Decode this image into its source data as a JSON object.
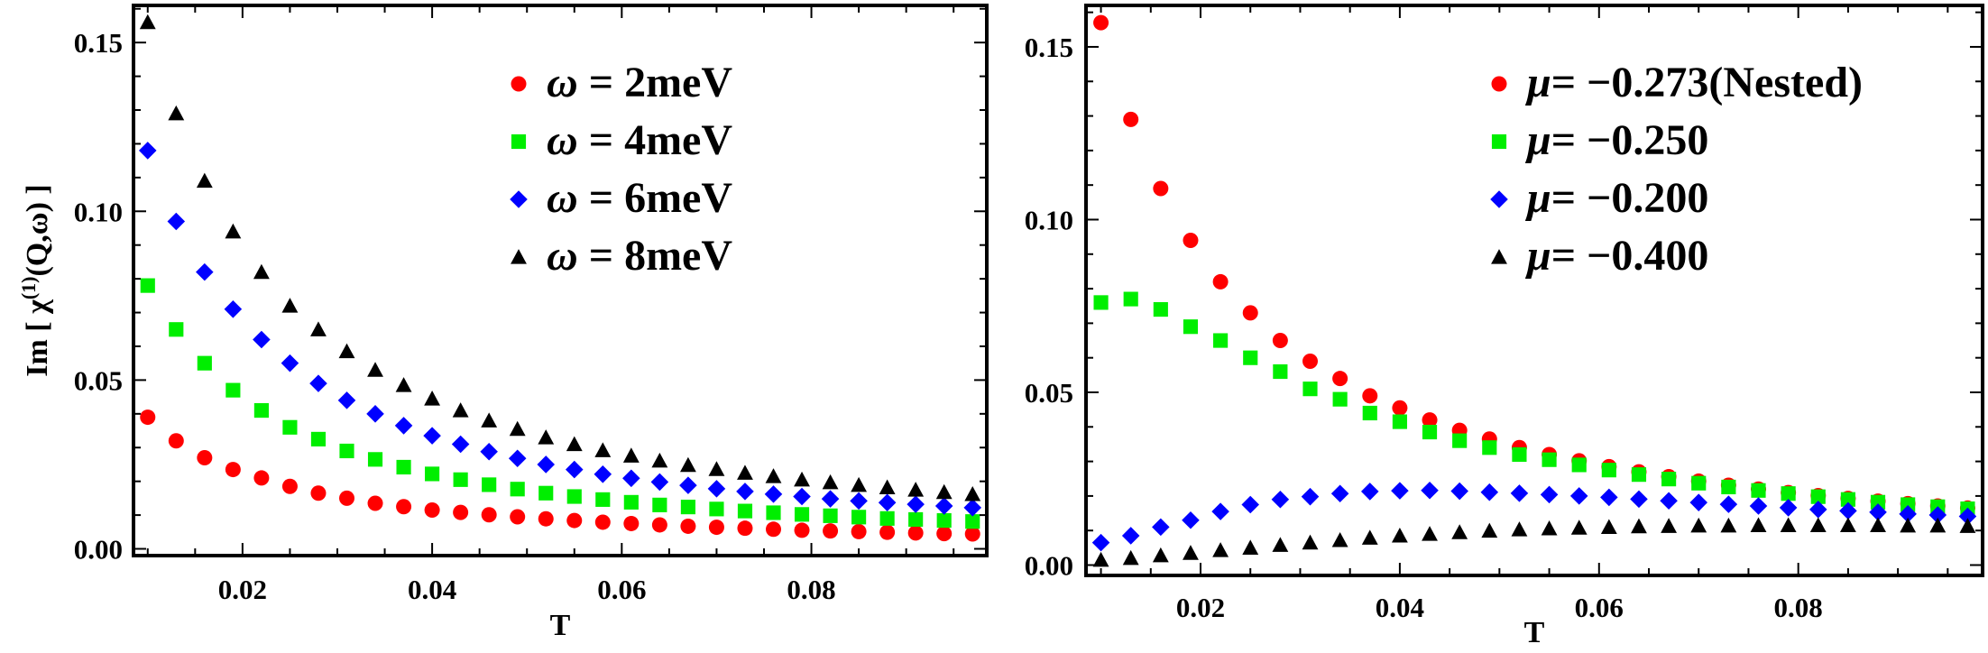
{
  "chart_data": [
    {
      "type": "scatter",
      "title": "",
      "xlabel": "T",
      "ylabel": "Im [ χ(1)(Q,ω) ]",
      "ylabel_parts": {
        "prefix": "Im [ χ",
        "sup": "(1)",
        "suffix": "(Q,ω) ]"
      },
      "xlim": [
        0.0085,
        0.0985
      ],
      "ylim": [
        -0.002,
        0.161
      ],
      "xticks": [
        0.02,
        0.04,
        0.06,
        0.08
      ],
      "xtick_labels": [
        "0.02",
        "0.04",
        "0.06",
        "0.08"
      ],
      "yticks": [
        0.0,
        0.05,
        0.1,
        0.15
      ],
      "ytick_labels": [
        "0.00",
        "0.05",
        "0.10",
        "0.15"
      ],
      "legend_position": "top-right",
      "x": [
        0.01,
        0.013,
        0.016,
        0.019,
        0.022,
        0.025,
        0.028,
        0.031,
        0.034,
        0.037,
        0.04,
        0.043,
        0.046,
        0.049,
        0.052,
        0.055,
        0.058,
        0.061,
        0.064,
        0.067,
        0.07,
        0.073,
        0.076,
        0.079,
        0.082,
        0.085,
        0.088,
        0.091,
        0.094,
        0.097
      ],
      "series": [
        {
          "name": "ω = 2meV",
          "legend_symbol": "ω",
          "legend_rest": " = 2meV",
          "color": "#ff0000",
          "marker": "circle",
          "values": [
            0.039,
            0.032,
            0.027,
            0.0235,
            0.021,
            0.0185,
            0.0165,
            0.015,
            0.0135,
            0.0125,
            0.0115,
            0.0108,
            0.0101,
            0.0095,
            0.0089,
            0.0084,
            0.0079,
            0.0075,
            0.0071,
            0.0067,
            0.0064,
            0.0061,
            0.0058,
            0.0055,
            0.0053,
            0.0051,
            0.0049,
            0.0047,
            0.0045,
            0.0044
          ]
        },
        {
          "name": "ω = 4meV",
          "legend_symbol": "ω",
          "legend_rest": " = 4meV",
          "color": "#00ee00",
          "marker": "square",
          "values": [
            0.078,
            0.065,
            0.055,
            0.047,
            0.041,
            0.036,
            0.0325,
            0.029,
            0.0265,
            0.0242,
            0.0222,
            0.0205,
            0.019,
            0.0177,
            0.0165,
            0.0155,
            0.0146,
            0.0138,
            0.013,
            0.0124,
            0.0118,
            0.0112,
            0.0107,
            0.0102,
            0.0098,
            0.0094,
            0.009,
            0.0087,
            0.0084,
            0.0081
          ]
        },
        {
          "name": "ω = 6meV",
          "legend_symbol": "ω",
          "legend_rest": " = 6meV",
          "color": "#0000ff",
          "marker": "diamond",
          "values": [
            0.118,
            0.097,
            0.082,
            0.071,
            0.062,
            0.055,
            0.049,
            0.044,
            0.04,
            0.0365,
            0.0335,
            0.031,
            0.0288,
            0.0268,
            0.025,
            0.0235,
            0.0221,
            0.0209,
            0.0198,
            0.0188,
            0.0178,
            0.017,
            0.0162,
            0.0155,
            0.0148,
            0.0142,
            0.0137,
            0.0132,
            0.0127,
            0.0122
          ]
        },
        {
          "name": "ω = 8meV",
          "legend_symbol": "ω",
          "legend_rest": " = 8meV",
          "color": "#000000",
          "marker": "triangle",
          "values": [
            0.156,
            0.129,
            0.109,
            0.094,
            0.082,
            0.072,
            0.065,
            0.0585,
            0.053,
            0.0485,
            0.0445,
            0.041,
            0.038,
            0.0355,
            0.033,
            0.031,
            0.0292,
            0.0276,
            0.0261,
            0.0248,
            0.0236,
            0.0225,
            0.0215,
            0.0205,
            0.0197,
            0.0189,
            0.0182,
            0.0175,
            0.0168,
            0.0162
          ]
        }
      ]
    },
    {
      "type": "scatter",
      "title": "",
      "xlabel": "T",
      "ylabel": "",
      "xlim": [
        0.0085,
        0.0985
      ],
      "ylim": [
        -0.003,
        0.162
      ],
      "xticks": [
        0.02,
        0.04,
        0.06,
        0.08
      ],
      "xtick_labels": [
        "0.02",
        "0.04",
        "0.06",
        "0.08"
      ],
      "yticks": [
        0.0,
        0.05,
        0.1,
        0.15
      ],
      "ytick_labels": [
        "0.00",
        "0.05",
        "0.10",
        "0.15"
      ],
      "legend_position": "top-right",
      "x": [
        0.01,
        0.013,
        0.016,
        0.019,
        0.022,
        0.025,
        0.028,
        0.031,
        0.034,
        0.037,
        0.04,
        0.043,
        0.046,
        0.049,
        0.052,
        0.055,
        0.058,
        0.061,
        0.064,
        0.067,
        0.07,
        0.073,
        0.076,
        0.079,
        0.082,
        0.085,
        0.088,
        0.091,
        0.094,
        0.097
      ],
      "series": [
        {
          "name": "μ= −0.273(Nested)",
          "legend_symbol": "μ",
          "legend_rest": "= −0.273(Nested)",
          "color": "#ff0000",
          "marker": "circle",
          "values": [
            0.157,
            0.129,
            0.109,
            0.094,
            0.082,
            0.073,
            0.065,
            0.059,
            0.054,
            0.049,
            0.0455,
            0.042,
            0.039,
            0.0365,
            0.034,
            0.032,
            0.0302,
            0.0285,
            0.027,
            0.0256,
            0.0243,
            0.0231,
            0.022,
            0.021,
            0.0201,
            0.0193,
            0.0185,
            0.0178,
            0.0171,
            0.0165
          ]
        },
        {
          "name": "μ= −0.250",
          "legend_symbol": "μ",
          "legend_rest": "= −0.250",
          "color": "#00ee00",
          "marker": "square",
          "values": [
            0.076,
            0.077,
            0.074,
            0.069,
            0.065,
            0.06,
            0.056,
            0.051,
            0.048,
            0.044,
            0.0415,
            0.0385,
            0.036,
            0.034,
            0.032,
            0.0305,
            0.029,
            0.0275,
            0.0262,
            0.0249,
            0.0237,
            0.0226,
            0.0216,
            0.0207,
            0.0198,
            0.019,
            0.0182,
            0.0175,
            0.0169,
            0.0163
          ]
        },
        {
          "name": "μ= −0.200",
          "legend_symbol": "μ",
          "legend_rest": "= −0.200",
          "color": "#0000ff",
          "marker": "diamond",
          "values": [
            0.0065,
            0.0085,
            0.011,
            0.013,
            0.0155,
            0.0175,
            0.019,
            0.0198,
            0.0207,
            0.0213,
            0.0215,
            0.0216,
            0.0214,
            0.0211,
            0.0208,
            0.0204,
            0.02,
            0.0196,
            0.0191,
            0.0186,
            0.0181,
            0.0176,
            0.0171,
            0.0166,
            0.0161,
            0.0157,
            0.0153,
            0.0148,
            0.0145,
            0.0141
          ]
        },
        {
          "name": "μ= −0.400",
          "legend_symbol": "μ",
          "legend_rest": "= −0.400",
          "color": "#000000",
          "marker": "triangle",
          "values": [
            0.0015,
            0.002,
            0.0028,
            0.0035,
            0.0043,
            0.005,
            0.0058,
            0.0065,
            0.0072,
            0.0079,
            0.0085,
            0.009,
            0.0095,
            0.0099,
            0.0103,
            0.0106,
            0.0108,
            0.011,
            0.0112,
            0.0113,
            0.0114,
            0.0114,
            0.0115,
            0.0115,
            0.0115,
            0.0115,
            0.0115,
            0.0114,
            0.0114,
            0.0113
          ]
        }
      ]
    }
  ]
}
